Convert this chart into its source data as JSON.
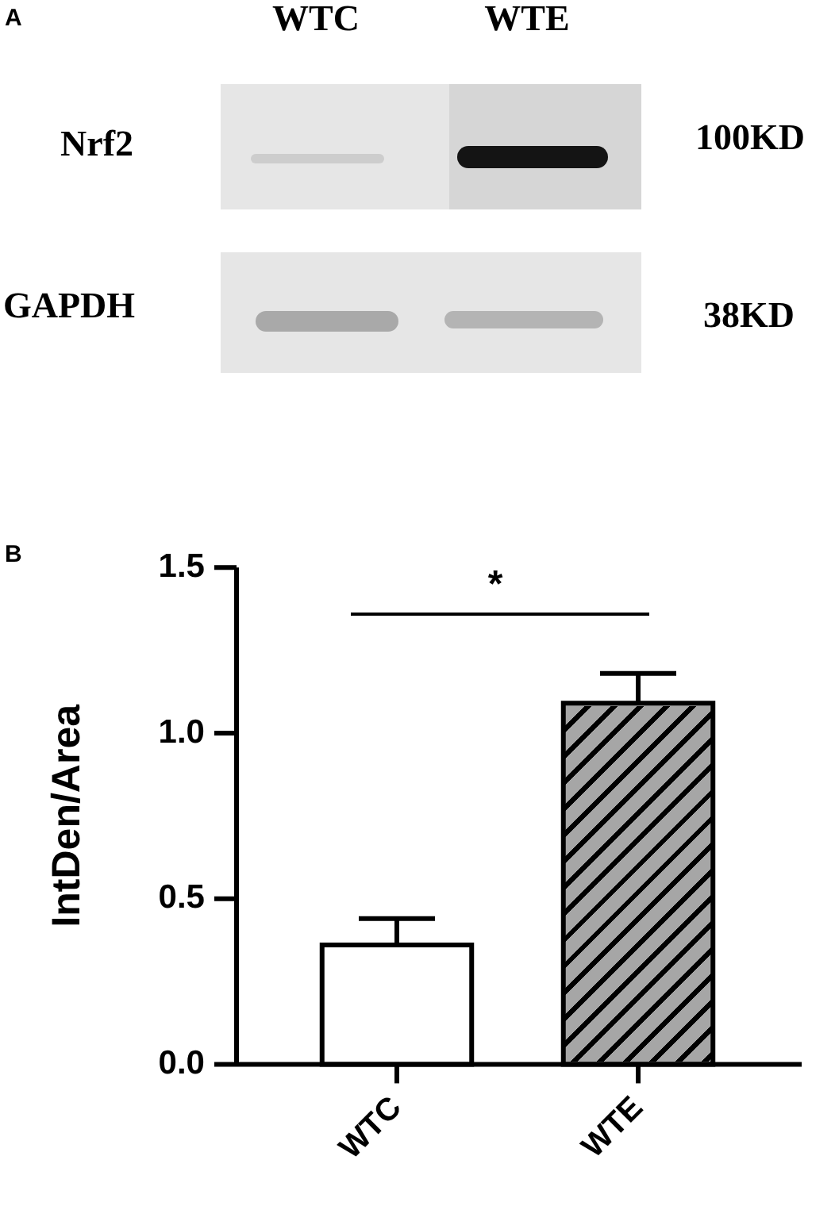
{
  "chart_data": {
    "type": "bar",
    "categories": [
      "WTC",
      "WTE"
    ],
    "values": [
      0.36,
      1.09
    ],
    "colors": [
      "#ffffff",
      "#a6a6a6"
    ],
    "errors": [
      [
        0.36,
        0.44
      ],
      [
        1.09,
        1.18
      ]
    ],
    "ylim": [
      0,
      1.5
    ],
    "yticks": [
      {
        "value": 0,
        "label": "0.0"
      },
      {
        "value": 0.5,
        "label": "0.5"
      },
      {
        "value": 1,
        "label": "1.0"
      },
      {
        "value": 1.5,
        "label": "1.5"
      }
    ],
    "ylabel": "IntDen/Area",
    "annotations": [
      "A",
      "WTC",
      "WTE",
      "Nrf2",
      "100KD",
      "GAPDH",
      "38KD",
      "B",
      "*"
    ]
  }
}
